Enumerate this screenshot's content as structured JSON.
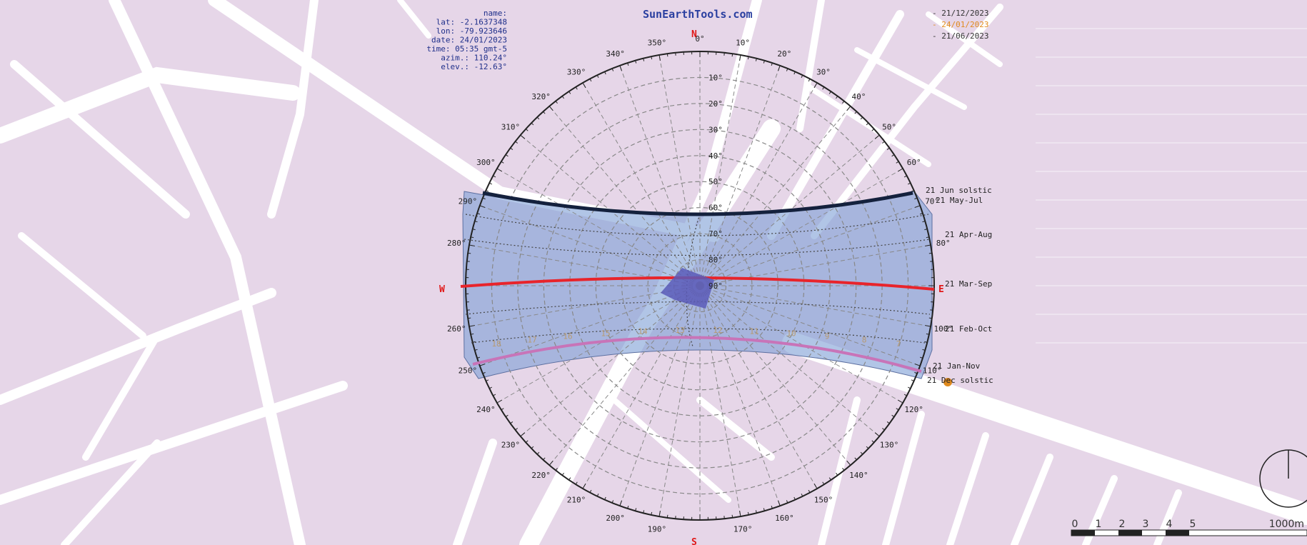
{
  "brand": "SunEarthTools.com",
  "info": [
    "name:",
    "lat: -2.1637348",
    "lon: -79.923646",
    "date: 24/01/2023",
    "time: 05:35 gmt-5",
    "azim.: 110.24°",
    "elev.: -12.63°"
  ],
  "legend": [
    {
      "label": "- 21/12/2023",
      "color": "#333333"
    },
    {
      "label": "- 24/01/2023",
      "color": "#e08a1e"
    },
    {
      "label": "- 21/06/2023",
      "color": "#333333"
    }
  ],
  "cardinals": {
    "n": "N",
    "s": "S",
    "e": "E",
    "w": "W"
  },
  "azimuth_labels": [
    "0°",
    "10°",
    "20°",
    "30°",
    "40°",
    "50°",
    "60°",
    "70°",
    "80°",
    "100°",
    "110°",
    "120°",
    "130°",
    "140°",
    "150°",
    "160°",
    "170°",
    "190°",
    "200°",
    "210°",
    "220°",
    "230°",
    "240°",
    "250°",
    "260°",
    "280°",
    "290°",
    "300°",
    "310°",
    "320°",
    "330°",
    "340°",
    "350°"
  ],
  "elevation_labels": [
    "10°",
    "20°",
    "30°",
    "40°",
    "50°",
    "60°",
    "70°",
    "80°",
    "90°"
  ],
  "hour_labels": [
    "18",
    "17",
    "16",
    "15",
    "14",
    "13",
    "12",
    "11",
    "10",
    "9",
    "8",
    "7"
  ],
  "day_labels": [
    "21 Jun  solstic",
    "21 May-Jul",
    "21 Apr-Aug",
    "21 Mar-Sep",
    "21 Feb-Oct",
    "21 Jan-Nov",
    "21 Dec  solstic"
  ],
  "scale": {
    "ticks": [
      "0",
      "1",
      "2",
      "3",
      "4",
      "5"
    ],
    "end": "1000m"
  },
  "colors": {
    "map_bg": "#e6d6e8",
    "band": "#7d9ed6",
    "jun_curve": "#14213d",
    "equinox_curve": "#e8242b",
    "date_curve": "#c874b8",
    "dashed": "#888888",
    "accent": "#e08a1e"
  }
}
